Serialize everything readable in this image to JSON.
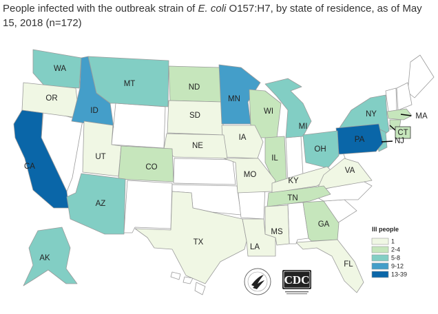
{
  "title": {
    "before": "People infected with the outbreak strain of ",
    "species": "E. coli",
    "after": " O157:H7, by state of residence, as of May 15, 2018 (n=172)"
  },
  "legend": {
    "title": "Ill people",
    "items": [
      {
        "label": "1",
        "color": "#f0f7e4"
      },
      {
        "label": "2-4",
        "color": "#c6e6bc"
      },
      {
        "label": "5-8",
        "color": "#82cec4"
      },
      {
        "label": "9-12",
        "color": "#449ec9"
      },
      {
        "label": "13-39",
        "color": "#0a66a8"
      }
    ]
  },
  "states": [
    {
      "abbr": "WA",
      "category": "5-8"
    },
    {
      "abbr": "OR",
      "category": "1"
    },
    {
      "abbr": "ID",
      "category": "9-12"
    },
    {
      "abbr": "MT",
      "category": "5-8"
    },
    {
      "abbr": "ND",
      "category": "2-4"
    },
    {
      "abbr": "SD",
      "category": "1"
    },
    {
      "abbr": "MN",
      "category": "9-12"
    },
    {
      "abbr": "WI",
      "category": "2-4"
    },
    {
      "abbr": "MI",
      "category": "5-8"
    },
    {
      "abbr": "NY",
      "category": "5-8"
    },
    {
      "abbr": "MA",
      "category": "2-4"
    },
    {
      "abbr": "CT",
      "category": "2-4"
    },
    {
      "abbr": "NJ",
      "category": "5-8"
    },
    {
      "abbr": "PA",
      "category": "13-39"
    },
    {
      "abbr": "OH",
      "category": "5-8"
    },
    {
      "abbr": "IL",
      "category": "2-4"
    },
    {
      "abbr": "IA",
      "category": "1"
    },
    {
      "abbr": "NE",
      "category": "1"
    },
    {
      "abbr": "CA",
      "category": "13-39"
    },
    {
      "abbr": "UT",
      "category": "1"
    },
    {
      "abbr": "CO",
      "category": "2-4"
    },
    {
      "abbr": "AZ",
      "category": "5-8"
    },
    {
      "abbr": "MO",
      "category": "1"
    },
    {
      "abbr": "KY",
      "category": "1"
    },
    {
      "abbr": "VA",
      "category": "1"
    },
    {
      "abbr": "TN",
      "category": "2-4"
    },
    {
      "abbr": "GA",
      "category": "2-4"
    },
    {
      "abbr": "TX",
      "category": "1"
    },
    {
      "abbr": "LA",
      "category": "1"
    },
    {
      "abbr": "MS",
      "category": "1"
    },
    {
      "abbr": "FL",
      "category": "1"
    },
    {
      "abbr": "AK",
      "category": "5-8"
    }
  ],
  "logos": {
    "cdc": "CDC"
  },
  "colors": {
    "no_cases": "#ffffff",
    "border": "#9a9a9a",
    "title_text": "#333333"
  }
}
